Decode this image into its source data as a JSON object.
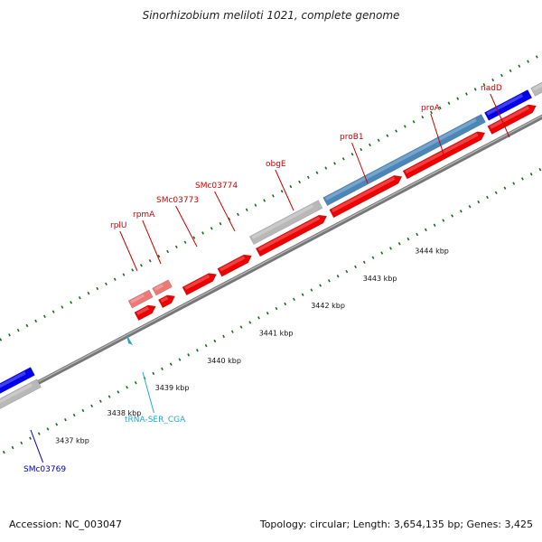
{
  "title": "Sinorhizobium meliloti 1021, complete genome",
  "footer": {
    "accession": "Accession: NC_003047",
    "summary": "Topology: circular; Length: 3,654,135 bp; Genes: 3,425"
  },
  "colors": {
    "feature_red": "#ee0000",
    "feature_pink": "#ee7777",
    "feature_blue": "#0000ee",
    "feature_steelblue": "#4a86b8",
    "feature_gray": "#b8b8b8",
    "backbone": "#777777",
    "tick_green": "#1a6b1a",
    "label_red": "#cc0000",
    "label_blue": "#0000aa",
    "label_cyan": "#22aacc"
  },
  "scale_labels": [
    "3437 kbp",
    "3438 kbp",
    "3439 kbp",
    "3440 kbp",
    "3441 kbp",
    "3442 kbp",
    "3443 kbp",
    "3444 kbp"
  ],
  "gene_labels": [
    {
      "name": "rplU",
      "color": "label_red"
    },
    {
      "name": "rpmA",
      "color": "label_red"
    },
    {
      "name": "SMc03773",
      "color": "label_red"
    },
    {
      "name": "SMc03774",
      "color": "label_red"
    },
    {
      "name": "obgE",
      "color": "label_red"
    },
    {
      "name": "proB1",
      "color": "label_red"
    },
    {
      "name": "proA",
      "color": "label_red"
    },
    {
      "name": "nadD",
      "color": "label_red"
    },
    {
      "name": "tRNA-SER_CGA",
      "color": "label_cyan"
    },
    {
      "name": "SMc03769",
      "color": "label_blue"
    }
  ]
}
